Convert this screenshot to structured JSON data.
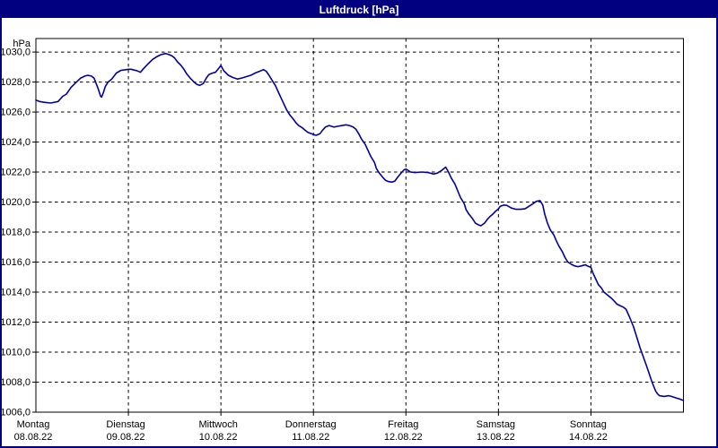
{
  "window": {
    "title": "Luftdruck [hPa]"
  },
  "chart_data": {
    "type": "line",
    "title": "Luftdruck [hPa]",
    "unit_label": "hPa",
    "legend": "none",
    "grid": "dashed",
    "colors": {
      "titlebar_bg": "#000080",
      "titlebar_text": "#ffffff",
      "window_border": "#000080",
      "plot_bg": "#ffffff",
      "grid_line": "#000000",
      "axis_line": "#000000",
      "label_text": "#000000",
      "series_line": "#0000a8"
    },
    "y_axis": {
      "min": 1006.0,
      "max": 1030.9,
      "tick_step": 2,
      "tick_values": [
        1030,
        1028,
        1026,
        1024,
        1022,
        1020,
        1018,
        1016,
        1014,
        1012,
        1010,
        1008,
        1006
      ],
      "tick_labels": [
        "1030,0",
        "1028,0",
        "1026,0",
        "1024,0",
        "1022,0",
        "1020,0",
        "1018,0",
        "1016,0",
        "1014,0",
        "1012,0",
        "1010,0",
        "1008,0",
        "1006,0"
      ]
    },
    "x_axis": {
      "span_days": 7,
      "days": [
        {
          "name": "Montag",
          "date": "08.08.22"
        },
        {
          "name": "Dienstag",
          "date": "09.08.22"
        },
        {
          "name": "Mittwoch",
          "date": "10.08.22"
        },
        {
          "name": "Donnerstag",
          "date": "11.08.22"
        },
        {
          "name": "Freitag",
          "date": "12.08.22"
        },
        {
          "name": "Samstag",
          "date": "13.08.22"
        },
        {
          "name": "Sonntag",
          "date": "14.08.22"
        }
      ]
    },
    "series": [
      {
        "name": "Luftdruck",
        "unit": "hPa",
        "points": [
          [
            0.0,
            1026.8
          ],
          [
            0.04,
            1026.7
          ],
          [
            0.09,
            1026.65
          ],
          [
            0.16,
            1026.6
          ],
          [
            0.24,
            1026.7
          ],
          [
            0.29,
            1027.05
          ],
          [
            0.33,
            1027.2
          ],
          [
            0.38,
            1027.65
          ],
          [
            0.43,
            1027.95
          ],
          [
            0.48,
            1028.25
          ],
          [
            0.53,
            1028.4
          ],
          [
            0.56,
            1028.45
          ],
          [
            0.6,
            1028.4
          ],
          [
            0.63,
            1028.25
          ],
          [
            0.67,
            1027.6
          ],
          [
            0.7,
            1027.05
          ],
          [
            0.71,
            1027.0
          ],
          [
            0.73,
            1027.3
          ],
          [
            0.75,
            1027.7
          ],
          [
            0.78,
            1028.0
          ],
          [
            0.82,
            1028.2
          ],
          [
            0.87,
            1028.6
          ],
          [
            0.92,
            1028.78
          ],
          [
            0.97,
            1028.82
          ],
          [
            1.0,
            1028.85
          ],
          [
            1.03,
            1028.85
          ],
          [
            1.06,
            1028.8
          ],
          [
            1.09,
            1028.76
          ],
          [
            1.13,
            1028.65
          ],
          [
            1.15,
            1028.8
          ],
          [
            1.18,
            1029.0
          ],
          [
            1.21,
            1029.2
          ],
          [
            1.26,
            1029.5
          ],
          [
            1.31,
            1029.7
          ],
          [
            1.35,
            1029.82
          ],
          [
            1.4,
            1029.9
          ],
          [
            1.43,
            1029.85
          ],
          [
            1.47,
            1029.75
          ],
          [
            1.5,
            1029.6
          ],
          [
            1.53,
            1029.35
          ],
          [
            1.57,
            1029.1
          ],
          [
            1.6,
            1028.85
          ],
          [
            1.63,
            1028.55
          ],
          [
            1.67,
            1028.25
          ],
          [
            1.71,
            1028.0
          ],
          [
            1.74,
            1027.85
          ],
          [
            1.77,
            1027.78
          ],
          [
            1.81,
            1027.9
          ],
          [
            1.84,
            1028.25
          ],
          [
            1.87,
            1028.5
          ],
          [
            1.91,
            1028.6
          ],
          [
            1.94,
            1028.65
          ],
          [
            1.98,
            1028.95
          ],
          [
            2.0,
            1029.1
          ],
          [
            2.03,
            1028.76
          ],
          [
            2.08,
            1028.45
          ],
          [
            2.13,
            1028.3
          ],
          [
            2.18,
            1028.2
          ],
          [
            2.23,
            1028.27
          ],
          [
            2.28,
            1028.37
          ],
          [
            2.33,
            1028.47
          ],
          [
            2.37,
            1028.6
          ],
          [
            2.42,
            1028.72
          ],
          [
            2.46,
            1028.83
          ],
          [
            2.49,
            1028.72
          ],
          [
            2.52,
            1028.45
          ],
          [
            2.55,
            1028.15
          ],
          [
            2.59,
            1027.75
          ],
          [
            2.62,
            1027.35
          ],
          [
            2.65,
            1026.95
          ],
          [
            2.68,
            1026.55
          ],
          [
            2.71,
            1026.15
          ],
          [
            2.74,
            1025.85
          ],
          [
            2.78,
            1025.55
          ],
          [
            2.81,
            1025.3
          ],
          [
            2.84,
            1025.1
          ],
          [
            2.88,
            1024.95
          ],
          [
            2.91,
            1024.8
          ],
          [
            2.94,
            1024.65
          ],
          [
            2.98,
            1024.55
          ],
          [
            3.0,
            1024.5
          ],
          [
            3.03,
            1024.45
          ],
          [
            3.07,
            1024.55
          ],
          [
            3.1,
            1024.8
          ],
          [
            3.13,
            1025.0
          ],
          [
            3.17,
            1025.1
          ],
          [
            3.22,
            1025.0
          ],
          [
            3.26,
            1025.05
          ],
          [
            3.31,
            1025.1
          ],
          [
            3.35,
            1025.15
          ],
          [
            3.39,
            1025.1
          ],
          [
            3.43,
            1025.0
          ],
          [
            3.46,
            1024.85
          ],
          [
            3.49,
            1024.55
          ],
          [
            3.52,
            1024.2
          ],
          [
            3.56,
            1023.85
          ],
          [
            3.59,
            1023.45
          ],
          [
            3.62,
            1023.05
          ],
          [
            3.66,
            1022.65
          ],
          [
            3.68,
            1022.25
          ],
          [
            3.71,
            1021.95
          ],
          [
            3.75,
            1021.65
          ],
          [
            3.78,
            1021.45
          ],
          [
            3.81,
            1021.37
          ],
          [
            3.85,
            1021.33
          ],
          [
            3.88,
            1021.4
          ],
          [
            3.91,
            1021.65
          ],
          [
            3.95,
            1021.95
          ],
          [
            3.98,
            1022.15
          ],
          [
            4.0,
            1022.2
          ],
          [
            4.02,
            1022.13
          ],
          [
            4.05,
            1022.0
          ],
          [
            4.1,
            1021.97
          ],
          [
            4.17,
            1022.0
          ],
          [
            4.24,
            1021.97
          ],
          [
            4.3,
            1021.87
          ],
          [
            4.34,
            1021.93
          ],
          [
            4.39,
            1022.13
          ],
          [
            4.43,
            1022.33
          ],
          [
            4.46,
            1022.0
          ],
          [
            4.49,
            1021.6
          ],
          [
            4.53,
            1021.2
          ],
          [
            4.56,
            1020.75
          ],
          [
            4.59,
            1020.3
          ],
          [
            4.63,
            1019.9
          ],
          [
            4.65,
            1019.5
          ],
          [
            4.68,
            1019.2
          ],
          [
            4.72,
            1018.9
          ],
          [
            4.75,
            1018.6
          ],
          [
            4.78,
            1018.5
          ],
          [
            4.81,
            1018.42
          ],
          [
            4.85,
            1018.6
          ],
          [
            4.88,
            1018.85
          ],
          [
            4.91,
            1019.05
          ],
          [
            4.94,
            1019.2
          ],
          [
            4.97,
            1019.4
          ],
          [
            5.0,
            1019.55
          ],
          [
            5.02,
            1019.72
          ],
          [
            5.06,
            1019.8
          ],
          [
            5.09,
            1019.78
          ],
          [
            5.14,
            1019.6
          ],
          [
            5.19,
            1019.52
          ],
          [
            5.24,
            1019.52
          ],
          [
            5.29,
            1019.56
          ],
          [
            5.33,
            1019.72
          ],
          [
            5.38,
            1019.92
          ],
          [
            5.41,
            1020.05
          ],
          [
            5.45,
            1020.1
          ],
          [
            5.48,
            1019.8
          ],
          [
            5.5,
            1019.2
          ],
          [
            5.53,
            1018.6
          ],
          [
            5.56,
            1018.15
          ],
          [
            5.6,
            1017.8
          ],
          [
            5.62,
            1017.5
          ],
          [
            5.65,
            1017.1
          ],
          [
            5.69,
            1016.7
          ],
          [
            5.72,
            1016.3
          ],
          [
            5.75,
            1016.0
          ],
          [
            5.79,
            1015.85
          ],
          [
            5.82,
            1015.75
          ],
          [
            5.86,
            1015.7
          ],
          [
            5.9,
            1015.75
          ],
          [
            5.94,
            1015.82
          ],
          [
            5.96,
            1015.75
          ],
          [
            6.0,
            1015.65
          ],
          [
            6.02,
            1015.3
          ],
          [
            6.05,
            1014.9
          ],
          [
            6.08,
            1014.5
          ],
          [
            6.11,
            1014.3
          ],
          [
            6.14,
            1014.0
          ],
          [
            6.18,
            1013.8
          ],
          [
            6.22,
            1013.6
          ],
          [
            6.26,
            1013.35
          ],
          [
            6.28,
            1013.2
          ],
          [
            6.32,
            1013.08
          ],
          [
            6.35,
            1013.0
          ],
          [
            6.38,
            1012.85
          ],
          [
            6.42,
            1012.3
          ],
          [
            6.46,
            1011.7
          ],
          [
            6.5,
            1010.9
          ],
          [
            6.53,
            1010.3
          ],
          [
            6.56,
            1009.8
          ],
          [
            6.6,
            1009.1
          ],
          [
            6.63,
            1008.55
          ],
          [
            6.66,
            1008.0
          ],
          [
            6.68,
            1007.7
          ],
          [
            6.7,
            1007.4
          ],
          [
            6.72,
            1007.22
          ],
          [
            6.74,
            1007.1
          ],
          [
            6.79,
            1007.05
          ],
          [
            6.84,
            1007.1
          ],
          [
            6.87,
            1007.05
          ],
          [
            6.92,
            1006.95
          ],
          [
            6.96,
            1006.87
          ],
          [
            6.99,
            1006.8
          ],
          [
            7.0,
            1006.78
          ]
        ]
      }
    ]
  }
}
